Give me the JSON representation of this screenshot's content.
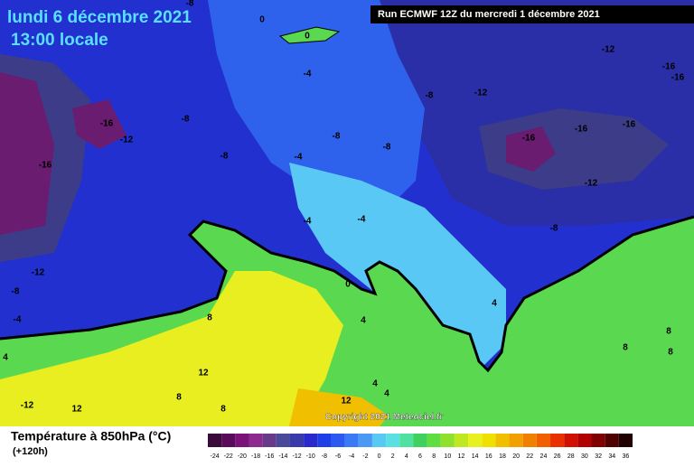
{
  "header": {
    "date": "lundi 6 décembre 2021",
    "time": "13:00 locale",
    "run": "Run ECMWF 12Z du mercredi 1 décembre 2021"
  },
  "copyright": "Copyright 2021 Meteociel.fr",
  "contour_labels": [
    "0",
    "0",
    "-4",
    "-8",
    "-16",
    "-12",
    "-16",
    "-8",
    "-8",
    "-8",
    "-8",
    "-12",
    "-12",
    "-16",
    "-16",
    "-16",
    "-16",
    "-16",
    "-12",
    "-8",
    "-4",
    "-4",
    "-4",
    "-12",
    "-8",
    "-4",
    "0",
    "8",
    "4",
    "4",
    "12",
    "8",
    "8",
    "4",
    "4",
    "12",
    "-12",
    "12",
    "8",
    "8",
    "8",
    "4",
    "-8"
  ],
  "legend": {
    "title": "Température à 850hPa (°C)",
    "subtitle": "(+120h)",
    "ticks": [
      -24,
      -22,
      -20,
      -18,
      -16,
      -14,
      -12,
      -10,
      -8,
      -6,
      -4,
      -2,
      0,
      2,
      4,
      6,
      8,
      10,
      12,
      14,
      16,
      18,
      20,
      22,
      24,
      26,
      28,
      30,
      32,
      34,
      36
    ],
    "colors": [
      "#3a0a3a",
      "#5a0a5a",
      "#7a127a",
      "#8e2a8e",
      "#6a3a8a",
      "#4a4a9a",
      "#3a3aaa",
      "#2a2acc",
      "#1e3ee6",
      "#2a5af0",
      "#3a7af5",
      "#4a9af5",
      "#5ac8f5",
      "#5ae0e0",
      "#50e0a0",
      "#40d060",
      "#60dd40",
      "#90e030",
      "#c0e820",
      "#e8f020",
      "#f0e000",
      "#f0c000",
      "#f0a000",
      "#f08000",
      "#f06000",
      "#e83000",
      "#d01000",
      "#b00000",
      "#800000",
      "#500000",
      "#200000"
    ]
  }
}
